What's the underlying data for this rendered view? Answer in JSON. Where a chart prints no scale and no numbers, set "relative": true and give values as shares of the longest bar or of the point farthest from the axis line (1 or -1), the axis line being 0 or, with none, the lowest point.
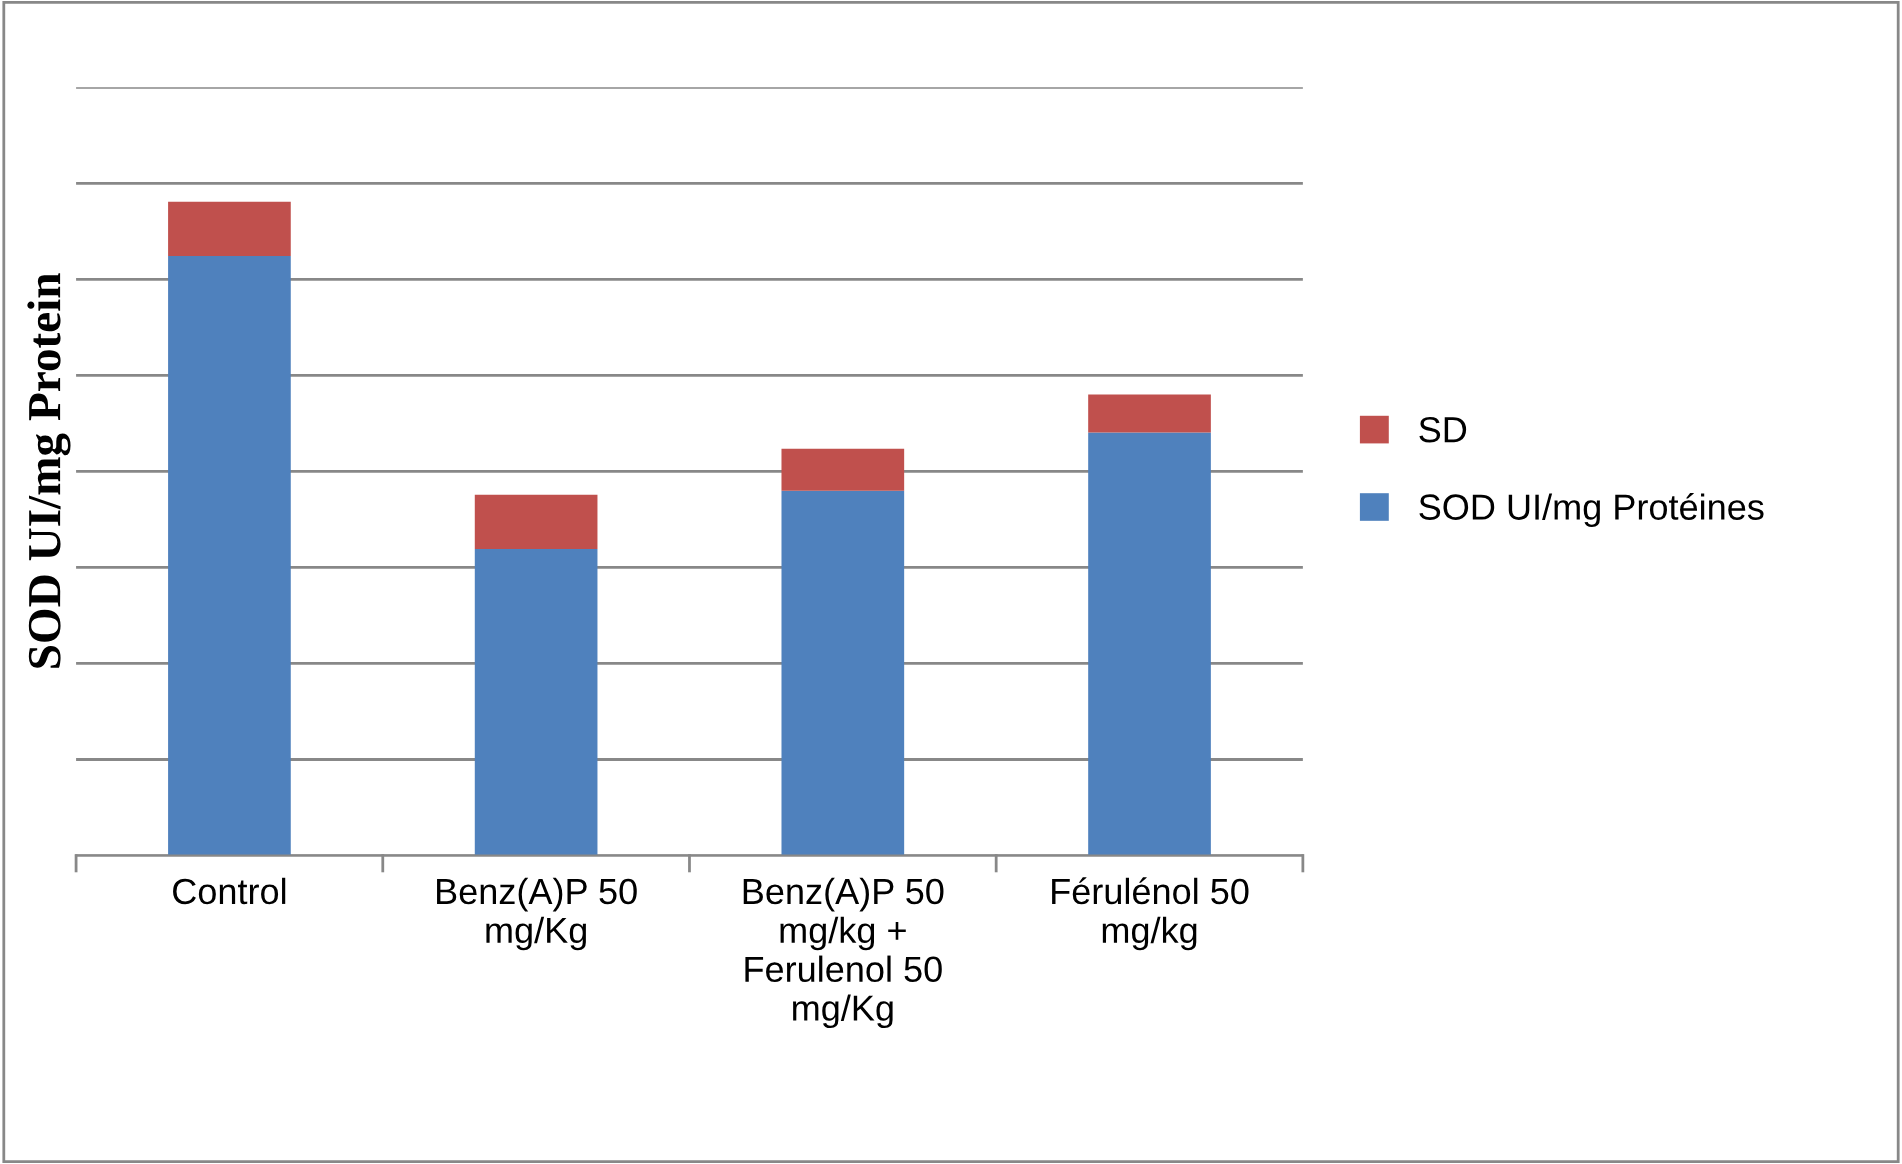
{
  "chart_data": {
    "type": "bar",
    "stacked": true,
    "relative": true,
    "ylabel": "SOD UI/mg Protein",
    "categories": [
      "Control",
      "Benz(A)P 50\nmg/Kg",
      "Benz(A)P 50\nmg/kg +\nFerulenol 50\nmg/Kg",
      "Férulénol 50\nmg/kg"
    ],
    "series": [
      {
        "name": "SOD UI/mg Protéines",
        "color": "#4f81bd",
        "values": [
          0.917,
          0.469,
          0.558,
          0.647
        ]
      },
      {
        "name": "SD",
        "color": "#c0504d",
        "values": [
          0.083,
          0.083,
          0.064,
          0.058
        ]
      }
    ],
    "grid": "y",
    "legend": "right"
  }
}
